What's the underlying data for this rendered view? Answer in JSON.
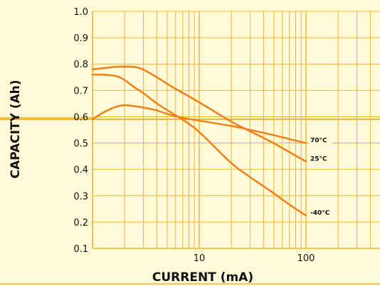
{
  "chart_data": {
    "type": "line",
    "title": "",
    "xlabel": "CURRENT (mA)",
    "ylabel": "CAPACITY (Ah)",
    "x_scale": "log",
    "xlim": [
      1,
      500
    ],
    "ylim": [
      0.1,
      1.0
    ],
    "x_tick_labels": [
      {
        "value": 10,
        "label": "10"
      },
      {
        "value": 100,
        "label": "100"
      }
    ],
    "y_tick_labels": [
      {
        "value": 1.0,
        "label": "1.0"
      },
      {
        "value": 0.9,
        "label": "0.9"
      },
      {
        "value": 0.8,
        "label": "0.8"
      },
      {
        "value": 0.7,
        "label": "0.7"
      },
      {
        "value": 0.6,
        "label": "0.6"
      },
      {
        "value": 0.5,
        "label": "0.5"
      },
      {
        "value": 0.4,
        "label": "0.4"
      },
      {
        "value": 0.3,
        "label": "0.3"
      },
      {
        "value": 0.2,
        "label": "0.2"
      },
      {
        "value": 0.1,
        "label": "0.1"
      }
    ],
    "grid": true,
    "colors": {
      "series": "#ef7f1a",
      "grid": "#f5b530",
      "background": "#fffbd8",
      "axis_bar": "#f7c948"
    },
    "series": [
      {
        "name": "70°C",
        "x": [
          1,
          1.3,
          1.7,
          2,
          2.5,
          3,
          4,
          5,
          7,
          10,
          20,
          30,
          50,
          70,
          100
        ],
        "y": [
          0.59,
          0.62,
          0.64,
          0.645,
          0.64,
          0.635,
          0.625,
          0.61,
          0.595,
          0.585,
          0.565,
          0.55,
          0.53,
          0.515,
          0.5
        ]
      },
      {
        "name": "25°C",
        "x": [
          1,
          1.3,
          1.7,
          2,
          2.5,
          3,
          4,
          5,
          7,
          10,
          20,
          30,
          50,
          70,
          100
        ],
        "y": [
          0.78,
          0.785,
          0.79,
          0.79,
          0.79,
          0.78,
          0.75,
          0.725,
          0.69,
          0.655,
          0.58,
          0.545,
          0.5,
          0.465,
          0.43
        ]
      },
      {
        "name": "-40°C",
        "x": [
          1,
          1.3,
          1.7,
          2,
          2.5,
          3,
          4,
          5,
          7,
          10,
          20,
          30,
          50,
          70,
          100
        ],
        "y": [
          0.76,
          0.76,
          0.755,
          0.74,
          0.71,
          0.69,
          0.65,
          0.625,
          0.59,
          0.545,
          0.42,
          0.37,
          0.31,
          0.265,
          0.225
        ]
      }
    ]
  }
}
